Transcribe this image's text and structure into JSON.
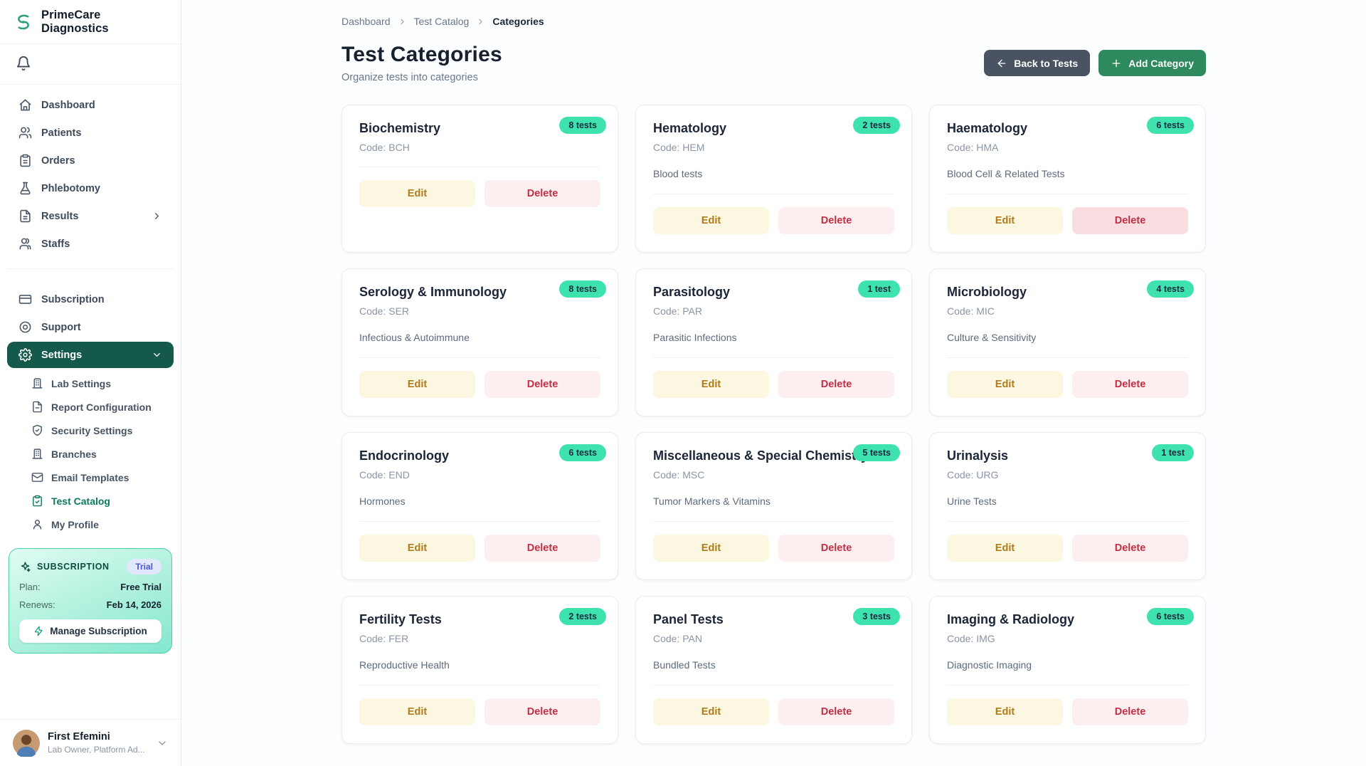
{
  "colors": {
    "sidebar_active": "#14594a",
    "brand_green": "#2a9d79",
    "add_button_green": "#2e8a5e",
    "back_button_slate": "#4a5361",
    "badge_mint": "#3ee2af",
    "edit_bg": "#fcf7e1",
    "edit_text": "#b07b1b",
    "delete_bg": "#fdeff0",
    "delete_text": "#c22f45",
    "trial_badge_bg": "#e3e7fc",
    "trial_badge_text": "#4856d3",
    "subscription_gradient": [
      "#e0fcf3",
      "#82e8cf"
    ],
    "active_submenu_green": "#0c7a5d"
  },
  "sidebar": {
    "brand": "PrimeCare Diagnostics",
    "brand_icon": "brand-s-icon",
    "bell_icon": "bell-icon",
    "nav_main": [
      {
        "icon": "home-icon",
        "label": "Dashboard"
      },
      {
        "icon": "patients-icon",
        "label": "Patients"
      },
      {
        "icon": "orders-icon",
        "label": "Orders"
      },
      {
        "icon": "phlebotomy-icon",
        "label": "Phlebotomy"
      },
      {
        "icon": "results-icon",
        "label": "Results",
        "chevron": "right"
      },
      {
        "icon": "staffs-icon",
        "label": "Staffs"
      }
    ],
    "nav_secondary": [
      {
        "icon": "subscription-icon",
        "label": "Subscription"
      },
      {
        "icon": "support-icon",
        "label": "Support"
      },
      {
        "icon": "settings-icon",
        "label": "Settings",
        "active": true,
        "chevron": "down"
      }
    ],
    "settings_submenu": [
      {
        "icon": "lab-settings-icon",
        "label": "Lab Settings"
      },
      {
        "icon": "report-config-icon",
        "label": "Report Configuration"
      },
      {
        "icon": "security-icon",
        "label": "Security Settings"
      },
      {
        "icon": "branches-icon",
        "label": "Branches"
      },
      {
        "icon": "email-templates-icon",
        "label": "Email Templates"
      },
      {
        "icon": "test-catalog-icon",
        "label": "Test Catalog",
        "active": true
      },
      {
        "icon": "profile-icon",
        "label": "My Profile"
      }
    ],
    "subscription_widget": {
      "icon": "sparkles-icon",
      "title": "SUBSCRIPTION",
      "badge": "Trial",
      "plan_label": "Plan:",
      "plan_value": "Free Trial",
      "renews_label": "Renews:",
      "renews_value": "Feb 14, 2026",
      "manage_icon": "zap-icon",
      "manage_label": "Manage Subscription"
    },
    "user": {
      "avatar": "avatar",
      "name": "First Efemini",
      "role": "Lab Owner, Platform Ad...",
      "chevron_icon": "chevron-down-icon"
    }
  },
  "breadcrumb": [
    "Dashboard",
    "Test Catalog",
    "Categories"
  ],
  "header": {
    "title": "Test Categories",
    "subtitle": "Organize tests into categories",
    "back_button": "Back to Tests",
    "back_icon": "arrow-left-icon",
    "add_button": "Add Category",
    "add_icon": "plus-icon"
  },
  "card_labels": {
    "code_prefix": "Code: ",
    "edit": "Edit",
    "delete": "Delete"
  },
  "categories": [
    {
      "name": "Biochemistry",
      "code": "BCH",
      "description": "",
      "count_label": "8 tests"
    },
    {
      "name": "Hematology",
      "code": "HEM",
      "description": "Blood tests",
      "count_label": "2 tests"
    },
    {
      "name": "Haematology",
      "code": "HMA",
      "description": "Blood Cell & Related Tests",
      "count_label": "6 tests",
      "delete_hovered": true
    },
    {
      "name": "Serology & Immunology",
      "code": "SER",
      "description": "Infectious & Autoimmune",
      "count_label": "8 tests"
    },
    {
      "name": "Parasitology",
      "code": "PAR",
      "description": "Parasitic Infections",
      "count_label": "1 test"
    },
    {
      "name": "Microbiology",
      "code": "MIC",
      "description": "Culture & Sensitivity",
      "count_label": "4 tests"
    },
    {
      "name": "Endocrinology",
      "code": "END",
      "description": "Hormones",
      "count_label": "6 tests"
    },
    {
      "name": "Miscellaneous & Special Chemistry",
      "code": "MSC",
      "description": "Tumor Markers & Vitamins",
      "count_label": "5 tests"
    },
    {
      "name": "Urinalysis",
      "code": "URG",
      "description": "Urine Tests",
      "count_label": "1 test"
    },
    {
      "name": "Fertility Tests",
      "code": "FER",
      "description": "Reproductive Health",
      "count_label": "2 tests"
    },
    {
      "name": "Panel Tests",
      "code": "PAN",
      "description": "Bundled Tests",
      "count_label": "3 tests"
    },
    {
      "name": "Imaging & Radiology",
      "code": "IMG",
      "description": "Diagnostic Imaging",
      "count_label": "6 tests"
    }
  ]
}
